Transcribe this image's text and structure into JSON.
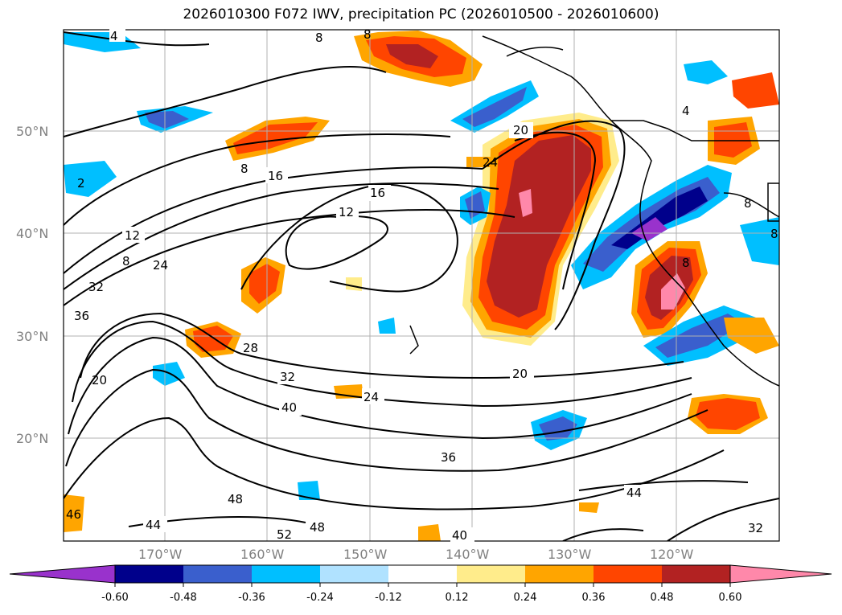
{
  "title": "2026010300 F072 IWV, precipitation PC (2026010500 - 2026010600)",
  "latitude_labels": [
    "50°N",
    "40°N",
    "30°N",
    "20°N"
  ],
  "longitude_labels": [
    "170°W",
    "160°W",
    "150°W",
    "140°W",
    "130°W",
    "120°W"
  ],
  "colorbar": {
    "colors": [
      "#9932CC",
      "#00008B",
      "#3A5FCD",
      "#00BFFF",
      "#B0E2FF",
      "#FFFFFF",
      "#FFEC8B",
      "#FFA500",
      "#FF4500",
      "#B22222",
      "#FF88AA"
    ],
    "tick_labels": [
      "-0.60",
      "-0.48",
      "-0.36",
      "-0.24",
      "-0.12",
      "0.12",
      "0.24",
      "0.36",
      "0.48",
      "0.60"
    ]
  },
  "contour_labels": [
    "4",
    "8",
    "8",
    "4",
    "2",
    "8",
    "16",
    "16",
    "12",
    "12",
    "20",
    "24",
    "8",
    "8",
    "24",
    "32",
    "36",
    "20",
    "28",
    "32",
    "40",
    "24",
    "20",
    "36",
    "48",
    "44",
    "52",
    "48",
    "40",
    "44",
    "32",
    "46",
    "8",
    "8"
  ],
  "colors": {
    "contour": "#000000",
    "grid": "#B0B0B0",
    "coast": "#000000"
  }
}
